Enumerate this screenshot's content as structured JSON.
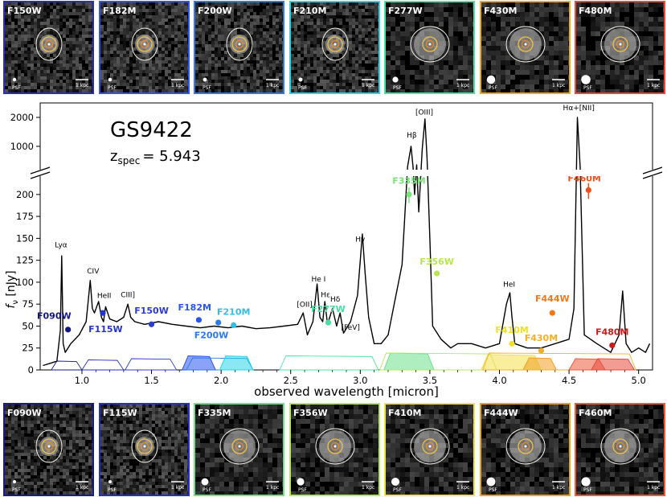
{
  "title": "GS9422",
  "redshift_label": "z",
  "redshift_sub": "spec",
  "redshift_value": "= 5.943",
  "top_stamps": [
    {
      "name": "F150W",
      "frame_color": "#2d2db8",
      "psf_size": 2.2
    },
    {
      "name": "F182M",
      "frame_color": "#3355ee",
      "psf_size": 2.3
    },
    {
      "name": "F200W",
      "frame_color": "#2f7be8",
      "psf_size": 2.4
    },
    {
      "name": "F210M",
      "frame_color": "#28d6e6",
      "psf_size": 2.5
    },
    {
      "name": "F277W",
      "frame_color": "#47e6a6",
      "psf_size": 3.6
    },
    {
      "name": "F430M",
      "frame_color": "#f2a81e",
      "psf_size": 5.2
    },
    {
      "name": "F480M",
      "frame_color": "#e84a3c",
      "psf_size": 5.8
    }
  ],
  "bottom_stamps": [
    {
      "name": "F090W",
      "frame_color": "#1a1a8a",
      "psf_size": 2.0
    },
    {
      "name": "F115W",
      "frame_color": "#2630c8",
      "psf_size": 2.0
    },
    {
      "name": "F335M",
      "frame_color": "#6ce08a",
      "psf_size": 4.4
    },
    {
      "name": "F356W",
      "frame_color": "#b4e85a",
      "psf_size": 4.6
    },
    {
      "name": "F410M",
      "frame_color": "#f2e04a",
      "psf_size": 5.0
    },
    {
      "name": "F444W",
      "frame_color": "#f0a020",
      "psf_size": 5.4
    },
    {
      "name": "F460M",
      "frame_color": "#ee5a3a",
      "psf_size": 5.6
    }
  ],
  "stamp_psf_label": "PSF",
  "stamp_scale_label": "1 kpc",
  "chart_data": {
    "type": "line",
    "xlabel": "observed wavelength [micron]",
    "ylabel": "f_ν [nJy]",
    "ylabel_main": "f",
    "ylabel_sub": "ν",
    "ylabel_unit": " [nJy]",
    "xlim": [
      0.7,
      5.1
    ],
    "ylim_lower": [
      0,
      220
    ],
    "ylim_upper": [
      0,
      2500
    ],
    "broken_y_axis": true,
    "x_ticks": [
      "1.0",
      "1.5",
      "2.0",
      "2.5",
      "3.0",
      "3.5",
      "4.0",
      "4.5",
      "5.0"
    ],
    "y_ticks_lower": [
      "0",
      "25",
      "50",
      "75",
      "100",
      "125",
      "150",
      "175",
      "200"
    ],
    "y_ticks_upper": [
      "1000",
      "2000"
    ],
    "spectrum": {
      "x": [
        0.72,
        0.78,
        0.82,
        0.845,
        0.855,
        0.865,
        0.88,
        0.92,
        0.98,
        1.03,
        1.06,
        1.075,
        1.09,
        1.12,
        1.14,
        1.155,
        1.17,
        1.2,
        1.25,
        1.3,
        1.33,
        1.35,
        1.38,
        1.45,
        1.55,
        1.65,
        1.75,
        1.85,
        1.95,
        2.05,
        2.15,
        2.25,
        2.35,
        2.45,
        2.55,
        2.59,
        2.62,
        2.66,
        2.69,
        2.71,
        2.73,
        2.745,
        2.765,
        2.8,
        2.83,
        2.855,
        2.88,
        2.93,
        2.98,
        3.015,
        3.035,
        3.06,
        3.1,
        3.15,
        3.2,
        3.25,
        3.3,
        3.34,
        3.365,
        3.38,
        3.39,
        3.405,
        3.42,
        3.445,
        3.465,
        3.48,
        3.5,
        3.52,
        3.58,
        3.65,
        3.7,
        3.8,
        3.9,
        4.0,
        4.05,
        4.075,
        4.09,
        4.11,
        4.2,
        4.3,
        4.4,
        4.5,
        4.535,
        4.56,
        4.58,
        4.61,
        4.7,
        4.8,
        4.86,
        4.885,
        4.91,
        4.95,
        5.0,
        5.05,
        5.08
      ],
      "y": [
        5,
        8,
        10,
        45,
        130,
        30,
        20,
        30,
        40,
        55,
        102,
        70,
        65,
        78,
        60,
        55,
        72,
        58,
        55,
        60,
        75,
        60,
        55,
        52,
        55,
        52,
        50,
        48,
        50,
        48,
        50,
        47,
        48,
        50,
        52,
        65,
        40,
        55,
        98,
        60,
        55,
        78,
        52,
        70,
        50,
        65,
        42,
        55,
        85,
        155,
        110,
        60,
        30,
        30,
        40,
        80,
        120,
        300,
        1000,
        250,
        200,
        360,
        180,
        900,
        1950,
        600,
        150,
        50,
        35,
        25,
        30,
        30,
        25,
        30,
        75,
        88,
        60,
        30,
        25,
        25,
        30,
        35,
        70,
        2000,
        300,
        40,
        30,
        20,
        40,
        90,
        30,
        20,
        25,
        20,
        30
      ]
    },
    "line_labels": [
      {
        "text": "Lyα",
        "x": 0.85,
        "y": 140
      },
      {
        "text": "CIV",
        "x": 1.08,
        "y": 110
      },
      {
        "text": "HeII",
        "x": 1.16,
        "y": 82
      },
      {
        "text": "CIII]",
        "x": 1.33,
        "y": 83
      },
      {
        "text": "[OII]",
        "x": 2.6,
        "y": 72
      },
      {
        "text": "He I",
        "x": 2.7,
        "y": 101
      },
      {
        "text": "Hε",
        "x": 2.75,
        "y": 83
      },
      {
        "text": "Hδ",
        "x": 2.82,
        "y": 78
      },
      {
        "text": "[FeV]",
        "x": 2.93,
        "y": 46
      },
      {
        "text": "Hγ",
        "x": 3.0,
        "y": 146
      },
      {
        "text": "Hβ",
        "x": 3.37,
        "y": 1300
      },
      {
        "text": "[OIII]",
        "x": 3.46,
        "y": 2100
      },
      {
        "text": "HeI",
        "x": 4.07,
        "y": 95
      },
      {
        "text": "Hα+[NII]",
        "x": 4.57,
        "y": 2250
      }
    ],
    "photometry": [
      {
        "name": "F090W",
        "x": 0.9,
        "y": 46,
        "color": "#151580",
        "label_x": 0.8,
        "label_y": 58
      },
      {
        "name": "F115W",
        "x": 1.15,
        "y": 65,
        "color": "#2535c8",
        "label_x": 1.17,
        "label_y": 43
      },
      {
        "name": "F150W",
        "x": 1.5,
        "y": 52,
        "color": "#2d3ccc",
        "label_x": 1.5,
        "label_y": 64
      },
      {
        "name": "F182M",
        "x": 1.84,
        "y": 57,
        "color": "#2a56f0",
        "label_x": 1.81,
        "label_y": 68
      },
      {
        "name": "F200W",
        "x": 1.98,
        "y": 54,
        "color": "#2b7af0",
        "label_x": 1.93,
        "label_y": 36
      },
      {
        "name": "F210M",
        "x": 2.09,
        "y": 51,
        "color": "#2fbfe6",
        "label_x": 2.09,
        "label_y": 63
      },
      {
        "name": "F277W",
        "x": 2.77,
        "y": 54,
        "color": "#48e0a0",
        "label_x": 2.77,
        "label_y": 66
      },
      {
        "name": "F335M",
        "x": 3.35,
        "y": 200,
        "color": "#79e37a",
        "label_x": 3.35,
        "label_y": 212
      },
      {
        "name": "F356W",
        "x": 3.55,
        "y": 110,
        "color": "#b8e64a",
        "label_x": 3.55,
        "label_y": 120
      },
      {
        "name": "F410M",
        "x": 4.09,
        "y": 30,
        "color": "#f0e020",
        "label_x": 4.09,
        "label_y": 42
      },
      {
        "name": "F430M",
        "x": 4.3,
        "y": 22,
        "color": "#f2b025",
        "label_x": 4.3,
        "label_y": 33
      },
      {
        "name": "F444W",
        "x": 4.38,
        "y": 65,
        "color": "#f07818",
        "label_x": 4.38,
        "label_y": 78
      },
      {
        "name": "F460M",
        "x": 4.64,
        "y": 205,
        "color": "#f04e1a",
        "label_x": 4.61,
        "label_y": 215
      },
      {
        "name": "F480M",
        "x": 4.81,
        "y": 28,
        "color": "#cc1a1a",
        "label_x": 4.81,
        "label_y": 40
      }
    ],
    "filter_curves": [
      {
        "name": "F090W",
        "color": "#1a1a8a",
        "lo": 0.78,
        "hi": 1.0,
        "peak": 0.22,
        "filled": false
      },
      {
        "name": "F115W",
        "color": "#2630c8",
        "lo": 1.0,
        "hi": 1.3,
        "peak": 0.25,
        "filled": false
      },
      {
        "name": "F150W",
        "color": "#2d3ccc",
        "lo": 1.31,
        "hi": 1.68,
        "peak": 0.28,
        "filled": false
      },
      {
        "name": "F182M",
        "color": "#2a56f0",
        "lo": 1.72,
        "hi": 1.96,
        "peak": 0.35,
        "filled": true
      },
      {
        "name": "F200W",
        "color": "#2f7be8",
        "lo": 1.75,
        "hi": 2.23,
        "peak": 0.3,
        "filled": false
      },
      {
        "name": "F210M",
        "color": "#28d6e6",
        "lo": 1.99,
        "hi": 2.23,
        "peak": 0.35,
        "filled": true
      },
      {
        "name": "F277W",
        "color": "#47e6a6",
        "lo": 2.42,
        "hi": 3.13,
        "peak": 0.35,
        "filled": false
      },
      {
        "name": "F335M",
        "color": "#6ce08a",
        "lo": 3.17,
        "hi": 3.53,
        "peak": 0.42,
        "filled": true
      },
      {
        "name": "F356W",
        "color": "#b4e85a",
        "lo": 3.14,
        "hi": 3.98,
        "peak": 0.42,
        "filled": false
      },
      {
        "name": "F410M",
        "color": "#f2e04a",
        "lo": 3.87,
        "hi": 4.3,
        "peak": 0.38,
        "filled": true
      },
      {
        "name": "F430M",
        "color": "#f0a020",
        "lo": 4.17,
        "hi": 4.41,
        "peak": 0.3,
        "filled": true
      },
      {
        "name": "F444W",
        "color": "#f2b025",
        "lo": 3.88,
        "hi": 4.98,
        "peak": 0.42,
        "filled": false
      },
      {
        "name": "F460M",
        "color": "#ee5a3a",
        "lo": 4.5,
        "hi": 4.76,
        "peak": 0.28,
        "filled": true
      },
      {
        "name": "F480M",
        "color": "#e84a3c",
        "lo": 4.66,
        "hi": 4.97,
        "peak": 0.28,
        "filled": true
      }
    ]
  }
}
